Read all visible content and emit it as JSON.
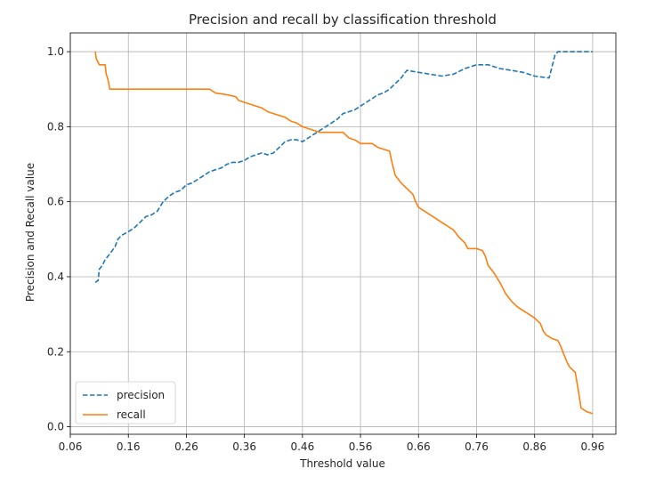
{
  "chart_data": {
    "type": "line",
    "title": "Precision and recall by classification threshold",
    "xlabel": "Threshold value",
    "ylabel": "Precision and Recall value",
    "xlim": [
      0.06,
      1.0
    ],
    "ylim": [
      -0.02,
      1.05
    ],
    "x_ticks": [
      0.06,
      0.16,
      0.26,
      0.36,
      0.46,
      0.56,
      0.66,
      0.76,
      0.86,
      0.96
    ],
    "x_tick_labels": [
      "0.06",
      "0.16",
      "0.26",
      "0.36",
      "0.46",
      "0.56",
      "0.66",
      "0.76",
      "0.86",
      "0.96"
    ],
    "y_ticks": [
      0.0,
      0.2,
      0.4,
      0.6,
      0.8,
      1.0
    ],
    "y_tick_labels": [
      "0.0",
      "0.2",
      "0.4",
      "0.6",
      "0.8",
      "1.0"
    ],
    "grid": true,
    "legend_position": "lower-left",
    "series": [
      {
        "name": "precision",
        "color": "#1f77b4",
        "style": "dashed",
        "points": [
          [
            0.103,
            0.385
          ],
          [
            0.108,
            0.39
          ],
          [
            0.11,
            0.42
          ],
          [
            0.115,
            0.43
          ],
          [
            0.12,
            0.445
          ],
          [
            0.125,
            0.455
          ],
          [
            0.13,
            0.465
          ],
          [
            0.137,
            0.48
          ],
          [
            0.142,
            0.5
          ],
          [
            0.148,
            0.51
          ],
          [
            0.16,
            0.52
          ],
          [
            0.17,
            0.53
          ],
          [
            0.18,
            0.545
          ],
          [
            0.19,
            0.56
          ],
          [
            0.2,
            0.565
          ],
          [
            0.21,
            0.575
          ],
          [
            0.22,
            0.6
          ],
          [
            0.23,
            0.615
          ],
          [
            0.24,
            0.625
          ],
          [
            0.25,
            0.63
          ],
          [
            0.26,
            0.645
          ],
          [
            0.27,
            0.65
          ],
          [
            0.28,
            0.66
          ],
          [
            0.29,
            0.67
          ],
          [
            0.3,
            0.68
          ],
          [
            0.31,
            0.685
          ],
          [
            0.32,
            0.69
          ],
          [
            0.33,
            0.7
          ],
          [
            0.34,
            0.705
          ],
          [
            0.35,
            0.705
          ],
          [
            0.36,
            0.71
          ],
          [
            0.37,
            0.72
          ],
          [
            0.38,
            0.725
          ],
          [
            0.39,
            0.73
          ],
          [
            0.4,
            0.725
          ],
          [
            0.41,
            0.73
          ],
          [
            0.42,
            0.745
          ],
          [
            0.43,
            0.76
          ],
          [
            0.44,
            0.765
          ],
          [
            0.45,
            0.765
          ],
          [
            0.46,
            0.76
          ],
          [
            0.47,
            0.77
          ],
          [
            0.48,
            0.78
          ],
          [
            0.49,
            0.79
          ],
          [
            0.5,
            0.8
          ],
          [
            0.51,
            0.81
          ],
          [
            0.52,
            0.82
          ],
          [
            0.53,
            0.835
          ],
          [
            0.54,
            0.84
          ],
          [
            0.55,
            0.845
          ],
          [
            0.56,
            0.855
          ],
          [
            0.57,
            0.865
          ],
          [
            0.58,
            0.875
          ],
          [
            0.59,
            0.885
          ],
          [
            0.6,
            0.89
          ],
          [
            0.61,
            0.9
          ],
          [
            0.62,
            0.915
          ],
          [
            0.63,
            0.93
          ],
          [
            0.64,
            0.95
          ],
          [
            0.66,
            0.945
          ],
          [
            0.68,
            0.94
          ],
          [
            0.7,
            0.935
          ],
          [
            0.72,
            0.94
          ],
          [
            0.74,
            0.955
          ],
          [
            0.76,
            0.965
          ],
          [
            0.78,
            0.965
          ],
          [
            0.8,
            0.955
          ],
          [
            0.82,
            0.95
          ],
          [
            0.84,
            0.945
          ],
          [
            0.86,
            0.935
          ],
          [
            0.885,
            0.93
          ],
          [
            0.895,
            0.99
          ],
          [
            0.9,
            1.0
          ],
          [
            0.96,
            1.0
          ]
        ]
      },
      {
        "name": "recall",
        "color": "#ff7f0e",
        "style": "solid",
        "points": [
          [
            0.103,
            1.0
          ],
          [
            0.105,
            0.98
          ],
          [
            0.11,
            0.965
          ],
          [
            0.115,
            0.965
          ],
          [
            0.12,
            0.965
          ],
          [
            0.122,
            0.94
          ],
          [
            0.125,
            0.925
          ],
          [
            0.128,
            0.9
          ],
          [
            0.2,
            0.9
          ],
          [
            0.3,
            0.9
          ],
          [
            0.31,
            0.89
          ],
          [
            0.33,
            0.885
          ],
          [
            0.345,
            0.88
          ],
          [
            0.35,
            0.87
          ],
          [
            0.36,
            0.865
          ],
          [
            0.37,
            0.86
          ],
          [
            0.38,
            0.855
          ],
          [
            0.39,
            0.85
          ],
          [
            0.4,
            0.84
          ],
          [
            0.41,
            0.835
          ],
          [
            0.42,
            0.83
          ],
          [
            0.43,
            0.825
          ],
          [
            0.44,
            0.815
          ],
          [
            0.45,
            0.81
          ],
          [
            0.46,
            0.8
          ],
          [
            0.47,
            0.795
          ],
          [
            0.48,
            0.79
          ],
          [
            0.49,
            0.785
          ],
          [
            0.5,
            0.785
          ],
          [
            0.51,
            0.785
          ],
          [
            0.52,
            0.785
          ],
          [
            0.53,
            0.785
          ],
          [
            0.54,
            0.77
          ],
          [
            0.55,
            0.765
          ],
          [
            0.56,
            0.755
          ],
          [
            0.57,
            0.755
          ],
          [
            0.58,
            0.755
          ],
          [
            0.59,
            0.745
          ],
          [
            0.6,
            0.74
          ],
          [
            0.61,
            0.735
          ],
          [
            0.615,
            0.7
          ],
          [
            0.62,
            0.67
          ],
          [
            0.625,
            0.66
          ],
          [
            0.63,
            0.65
          ],
          [
            0.64,
            0.635
          ],
          [
            0.65,
            0.62
          ],
          [
            0.655,
            0.6
          ],
          [
            0.66,
            0.585
          ],
          [
            0.67,
            0.575
          ],
          [
            0.68,
            0.565
          ],
          [
            0.69,
            0.555
          ],
          [
            0.7,
            0.545
          ],
          [
            0.71,
            0.535
          ],
          [
            0.72,
            0.525
          ],
          [
            0.73,
            0.505
          ],
          [
            0.74,
            0.49
          ],
          [
            0.745,
            0.475
          ],
          [
            0.76,
            0.475
          ],
          [
            0.77,
            0.47
          ],
          [
            0.775,
            0.455
          ],
          [
            0.78,
            0.43
          ],
          [
            0.79,
            0.41
          ],
          [
            0.8,
            0.385
          ],
          [
            0.81,
            0.355
          ],
          [
            0.82,
            0.335
          ],
          [
            0.83,
            0.32
          ],
          [
            0.84,
            0.31
          ],
          [
            0.85,
            0.3
          ],
          [
            0.86,
            0.29
          ],
          [
            0.87,
            0.275
          ],
          [
            0.875,
            0.255
          ],
          [
            0.88,
            0.245
          ],
          [
            0.89,
            0.235
          ],
          [
            0.9,
            0.23
          ],
          [
            0.905,
            0.215
          ],
          [
            0.91,
            0.195
          ],
          [
            0.915,
            0.175
          ],
          [
            0.92,
            0.16
          ],
          [
            0.93,
            0.145
          ],
          [
            0.935,
            0.1
          ],
          [
            0.94,
            0.05
          ],
          [
            0.95,
            0.04
          ],
          [
            0.96,
            0.035
          ]
        ]
      }
    ]
  }
}
